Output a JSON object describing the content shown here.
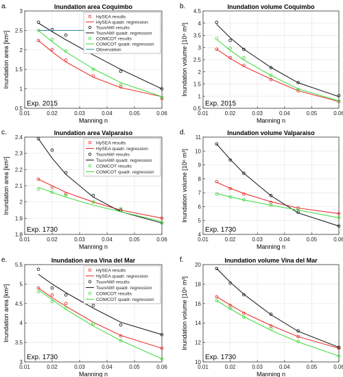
{
  "chart_data": [
    {
      "type": "scatter",
      "panel_letter": "a.",
      "title": "Inundation area Coquimbo",
      "xlabel": "Manning n",
      "ylabel": "Inundation area [km²]",
      "xlim": [
        0.01,
        0.06
      ],
      "ylim": [
        0.5,
        3.0
      ],
      "xticks": [
        0.01,
        0.02,
        0.03,
        0.04,
        0.05,
        0.06
      ],
      "yticks": [
        0.5,
        1,
        1.5,
        2,
        2.5,
        3
      ],
      "experiment": "Exp. 2015",
      "legend_position": "top-right",
      "x": [
        0.015,
        0.02,
        0.025,
        0.035,
        0.045,
        0.06
      ],
      "series": [
        {
          "name": "HySEA results",
          "kind": "markers",
          "color": "#e8332f",
          "values": [
            2.24,
            2.01,
            1.74,
            1.33,
            1.05,
            0.75
          ]
        },
        {
          "name": "HySEA quadr. regression",
          "kind": "line",
          "color": "#e8332f",
          "values": [
            2.24,
            1.95,
            1.69,
            1.3,
            1.03,
            0.8
          ]
        },
        {
          "name": "TsunAWI results",
          "kind": "markers",
          "color": "#222222",
          "values": [
            2.71,
            2.52,
            2.38,
            1.98,
            1.45,
            1.0
          ]
        },
        {
          "name": "TsunAWI quadr. regression",
          "kind": "line",
          "color": "#222222",
          "values": [
            2.69,
            2.47,
            2.26,
            1.87,
            1.5,
            1.0
          ]
        },
        {
          "name": "COMCOT results",
          "kind": "markers",
          "color": "#44dd44",
          "values": [
            2.5,
            2.27,
            1.97,
            1.5,
            1.1,
            0.78
          ]
        },
        {
          "name": "COMCOT quadr. regression",
          "kind": "line",
          "color": "#44dd44",
          "values": [
            2.5,
            2.21,
            1.95,
            1.51,
            1.16,
            0.8
          ]
        },
        {
          "name": "Observation",
          "kind": "hline",
          "color": "#3a8fa0",
          "values": [
            2.5,
            2.5,
            2.5,
            2.5,
            2.5,
            2.5
          ],
          "x_range": [
            0.015,
            0.035
          ]
        }
      ]
    },
    {
      "type": "scatter",
      "panel_letter": "b.",
      "title": "Inundation volume Coquimbo",
      "xlabel": "Manning n",
      "ylabel": "Inundation volume [10⁶ m³]",
      "xlim": [
        0.01,
        0.06
      ],
      "ylim": [
        0.5,
        4.5
      ],
      "xticks": [
        0.01,
        0.02,
        0.03,
        0.04,
        0.05,
        0.06
      ],
      "yticks": [
        0.5,
        1,
        1.5,
        2,
        2.5,
        3,
        3.5,
        4,
        4.5
      ],
      "experiment": "Exp. 2015",
      "x": [
        0.015,
        0.02,
        0.025,
        0.035,
        0.045,
        0.06
      ],
      "series": [
        {
          "name": "HySEA results",
          "kind": "markers",
          "color": "#e8332f",
          "values": [
            2.93,
            2.58,
            2.26,
            1.68,
            1.22,
            0.78
          ]
        },
        {
          "name": "HySEA quadr. regression",
          "kind": "line",
          "color": "#e8332f",
          "values": [
            2.93,
            2.55,
            2.22,
            1.7,
            1.22,
            0.78
          ]
        },
        {
          "name": "TsunAWI results",
          "kind": "markers",
          "color": "#222222",
          "values": [
            4.03,
            3.29,
            2.92,
            2.17,
            1.56,
            1.02
          ]
        },
        {
          "name": "TsunAWI quadr. regression",
          "kind": "line",
          "color": "#222222",
          "values": [
            3.95,
            3.4,
            2.93,
            2.18,
            1.55,
            0.98
          ]
        },
        {
          "name": "COMCOT results",
          "kind": "markers",
          "color": "#44dd44",
          "values": [
            3.37,
            2.97,
            2.58,
            1.86,
            1.27,
            0.8
          ]
        },
        {
          "name": "COMCOT quadr. regression",
          "kind": "line",
          "color": "#44dd44",
          "values": [
            3.33,
            2.88,
            2.49,
            1.85,
            1.3,
            0.8
          ]
        }
      ]
    },
    {
      "type": "scatter",
      "panel_letter": "c.",
      "title": "Inundation area Valparaiso",
      "xlabel": "Manning n",
      "ylabel": "Inundation area [km²]",
      "xlim": [
        0.01,
        0.06
      ],
      "ylim": [
        1.8,
        2.4
      ],
      "xticks": [
        0.01,
        0.02,
        0.03,
        0.04,
        0.05,
        0.06
      ],
      "yticks": [
        1.8,
        1.9,
        2.0,
        2.1,
        2.2,
        2.3,
        2.4
      ],
      "experiment": "Exp. 1730",
      "legend_position": "top-right",
      "x": [
        0.015,
        0.02,
        0.025,
        0.035,
        0.045,
        0.06
      ],
      "series": [
        {
          "name": "HySEA results",
          "kind": "markers",
          "color": "#e8332f",
          "values": [
            2.14,
            2.09,
            2.05,
            2.0,
            1.95,
            1.9
          ]
        },
        {
          "name": "HySEA quadr. regression",
          "kind": "line",
          "color": "#e8332f",
          "values": [
            2.14,
            2.1,
            2.06,
            2.0,
            1.95,
            1.9
          ]
        },
        {
          "name": "TsunAWI results",
          "kind": "markers",
          "color": "#222222",
          "values": [
            2.39,
            2.32,
            2.18,
            2.04,
            1.95,
            1.87
          ]
        },
        {
          "name": "TsunAWI quadr. regression",
          "kind": "line",
          "color": "#222222",
          "values": [
            2.39,
            2.27,
            2.17,
            2.03,
            1.94,
            1.87
          ]
        },
        {
          "name": "COMCOT results",
          "kind": "markers",
          "color": "#44dd44",
          "values": [
            2.08,
            2.06,
            2.04,
            2.0,
            1.96,
            1.87
          ]
        },
        {
          "name": "COMCOT quadr. regression",
          "kind": "line",
          "color": "#44dd44",
          "values": [
            2.09,
            2.06,
            2.03,
            1.98,
            1.94,
            1.88
          ]
        }
      ]
    },
    {
      "type": "scatter",
      "panel_letter": "d.",
      "title": "Inundation volume Valparaiso",
      "xlabel": "Manning n",
      "ylabel": "Inundation volume [10⁶ m³]",
      "xlim": [
        0.01,
        0.06
      ],
      "ylim": [
        4,
        11
      ],
      "xticks": [
        0.01,
        0.02,
        0.03,
        0.04,
        0.05,
        0.06
      ],
      "yticks": [
        4,
        5,
        6,
        7,
        8,
        9,
        10,
        11
      ],
      "experiment": "Exp. 1730",
      "x": [
        0.015,
        0.02,
        0.025,
        0.035,
        0.045,
        0.06
      ],
      "series": [
        {
          "name": "HySEA results",
          "kind": "markers",
          "color": "#e8332f",
          "values": [
            7.8,
            7.3,
            6.9,
            6.3,
            5.9,
            5.5
          ]
        },
        {
          "name": "HySEA quadr. regression",
          "kind": "line",
          "color": "#e8332f",
          "values": [
            7.75,
            7.32,
            6.95,
            6.35,
            5.9,
            5.5
          ]
        },
        {
          "name": "TsunAWI results",
          "kind": "markers",
          "color": "#222222",
          "values": [
            10.5,
            9.35,
            8.4,
            6.8,
            5.6,
            4.6
          ]
        },
        {
          "name": "TsunAWI quadr. regression",
          "kind": "line",
          "color": "#222222",
          "values": [
            10.5,
            9.4,
            8.4,
            6.78,
            5.55,
            4.6
          ]
        },
        {
          "name": "COMCOT results",
          "kind": "markers",
          "color": "#44dd44",
          "values": [
            6.9,
            6.7,
            6.5,
            6.1,
            5.8,
            5.2
          ]
        },
        {
          "name": "COMCOT quadr. regression",
          "kind": "line",
          "color": "#44dd44",
          "values": [
            6.95,
            6.7,
            6.48,
            6.1,
            5.75,
            5.2
          ]
        }
      ]
    },
    {
      "type": "scatter",
      "panel_letter": "e.",
      "title": "Inundation area Vina del Mar",
      "xlabel": "Manning n",
      "ylabel": "Inundation area [km²]",
      "xlim": [
        0.01,
        0.06
      ],
      "ylim": [
        3,
        5.5
      ],
      "xticks": [
        0.01,
        0.02,
        0.03,
        0.04,
        0.05,
        0.06
      ],
      "yticks": [
        3,
        3.5,
        4,
        4.5,
        5,
        5.5
      ],
      "experiment": "Exp. 1730",
      "legend_position": "top-right",
      "x": [
        0.015,
        0.02,
        0.025,
        0.035,
        0.045,
        0.06
      ],
      "series": [
        {
          "name": "HySEA results",
          "kind": "markers",
          "color": "#e8332f",
          "values": [
            4.9,
            4.72,
            4.5,
            3.98,
            3.67,
            3.35
          ]
        },
        {
          "name": "HySEA quadr. regression",
          "kind": "line",
          "color": "#e8332f",
          "values": [
            4.9,
            4.65,
            4.43,
            4.02,
            3.68,
            3.35
          ]
        },
        {
          "name": "TsunAWI results",
          "kind": "markers",
          "color": "#222222",
          "values": [
            5.38,
            4.9,
            4.72,
            4.45,
            3.95,
            3.7
          ]
        },
        {
          "name": "TsunAWI quadr. regression",
          "kind": "line",
          "color": "#222222",
          "values": [
            5.25,
            5.0,
            4.78,
            4.38,
            4.02,
            3.7
          ]
        },
        {
          "name": "COMCOT results",
          "kind": "markers",
          "color": "#44dd44",
          "values": [
            4.8,
            4.55,
            4.38,
            3.98,
            3.55,
            3.08
          ]
        },
        {
          "name": "COMCOT quadr. regression",
          "kind": "line",
          "color": "#44dd44",
          "values": [
            4.85,
            4.6,
            4.35,
            3.92,
            3.55,
            3.08
          ]
        }
      ]
    },
    {
      "type": "scatter",
      "panel_letter": "f.",
      "title": "Inundation volume Vina del Mar",
      "xlabel": "Manning n",
      "ylabel": "Inundation volume [10⁶ m³]",
      "xlim": [
        0.01,
        0.06
      ],
      "ylim": [
        10,
        20
      ],
      "xticks": [
        0.01,
        0.02,
        0.03,
        0.04,
        0.05,
        0.06
      ],
      "yticks": [
        10,
        12,
        14,
        16,
        18,
        20
      ],
      "experiment": "Exp. 1730",
      "x": [
        0.015,
        0.02,
        0.025,
        0.035,
        0.045,
        0.06
      ],
      "series": [
        {
          "name": "HySEA results",
          "kind": "markers",
          "color": "#e8332f",
          "values": [
            16.7,
            15.8,
            15.0,
            13.7,
            12.6,
            11.4
          ]
        },
        {
          "name": "HySEA quadr. regression",
          "kind": "line",
          "color": "#e8332f",
          "values": [
            16.7,
            15.85,
            15.05,
            13.75,
            12.6,
            11.4
          ]
        },
        {
          "name": "TsunAWI results",
          "kind": "markers",
          "color": "#222222",
          "values": [
            19.6,
            18.1,
            16.9,
            14.9,
            13.2,
            11.5
          ]
        },
        {
          "name": "TsunAWI quadr. regression",
          "kind": "line",
          "color": "#222222",
          "values": [
            19.6,
            18.2,
            16.95,
            14.85,
            13.15,
            11.5
          ]
        },
        {
          "name": "COMCOT results",
          "kind": "markers",
          "color": "#44dd44",
          "values": [
            16.3,
            15.5,
            14.6,
            13.4,
            12.1,
            10.6
          ]
        },
        {
          "name": "COMCOT quadr. regression",
          "kind": "line",
          "color": "#44dd44",
          "values": [
            16.3,
            15.45,
            14.65,
            13.25,
            12.05,
            10.6
          ]
        }
      ]
    }
  ]
}
